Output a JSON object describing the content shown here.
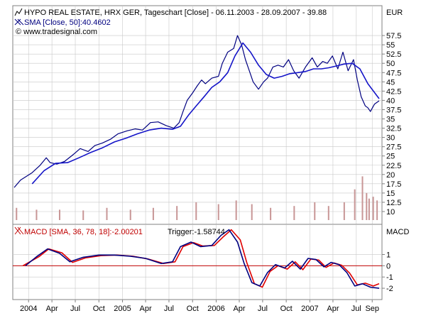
{
  "colors": {
    "background": "#ffffff",
    "grid": "#c8c8c8",
    "price_line": "#000080",
    "sma_line": "#1414c8",
    "volume_bars": "#c89696",
    "macd_line": "#000080",
    "trigger_line": "#e00000",
    "zero_line": "#c00000",
    "title_text": "#000000",
    "sma_text": "#000080",
    "macd_text": "#c00000"
  },
  "header": {
    "title": "HYPO REAL ESTATE, HRX GER, Tageschart [Close] - 06.11.2003 - 28.09.2007 - 39.88",
    "sma_legend": "SMA [Close, 50]:40.4602",
    "copyright": "© www.tradesignal.com",
    "currency": "EUR"
  },
  "macd_header": {
    "label": "MACD [SMA, 36, 78, 18]:-2.00201",
    "trigger": "Trigger:-1.58744",
    "axis_title": "MACD"
  },
  "chart_data": [
    {
      "type": "line",
      "title": "HYPO REAL ESTATE, HRX GER, Tageschart [Close] - 06.11.2003 - 28.09.2007 - 39.88",
      "ylabel": "EUR",
      "ylim": [
        10,
        60
      ],
      "yticks": [
        10,
        12.5,
        15,
        17.5,
        20,
        22.5,
        25,
        27.5,
        30,
        32.5,
        35,
        37.5,
        40,
        42.5,
        45,
        47.5,
        50,
        52.5,
        55,
        57.5
      ],
      "ytick_labels": [
        "10",
        "12.5",
        "15",
        "17.5",
        "20",
        "22.5",
        "25",
        "27.5",
        "30",
        "32.5",
        "35",
        "37.5",
        "40",
        "42.5",
        "45",
        "47.5",
        "50",
        "52.5",
        "55",
        "57.5"
      ],
      "x_range": [
        "2003-11-06",
        "2007-09-28"
      ],
      "xtick_dates": [
        "2004-01-01",
        "2004-04-01",
        "2004-07-01",
        "2004-10-01",
        "2005-01-01",
        "2005-04-01",
        "2005-07-01",
        "2005-10-01",
        "2006-01-01",
        "2006-04-01",
        "2006-07-01",
        "2006-10-01",
        "2007-01-01",
        "2007-04-01",
        "2007-07-01",
        "2007-09-01"
      ],
      "xtick_labels": [
        "2004",
        "Apr",
        "Jul",
        "Oct",
        "2005",
        "Apr",
        "Jul",
        "Oct",
        "2006",
        "Apr",
        "Jul",
        "Oct",
        "2007",
        "Apr",
        "Jul",
        "Sep"
      ],
      "grid": true,
      "series": [
        {
          "name": "HYPO REAL ESTATE",
          "x": [
            "2003-11-06",
            "2003-12-01",
            "2004-01-15",
            "2004-02-15",
            "2004-03-10",
            "2004-03-25",
            "2004-04-20",
            "2004-05-20",
            "2004-06-25",
            "2004-07-20",
            "2004-08-20",
            "2004-09-15",
            "2004-10-15",
            "2004-11-15",
            "2004-12-15",
            "2005-01-20",
            "2005-02-20",
            "2005-03-20",
            "2005-04-20",
            "2005-05-20",
            "2005-06-20",
            "2005-07-20",
            "2005-08-10",
            "2005-08-25",
            "2005-09-10",
            "2005-10-01",
            "2005-10-20",
            "2005-11-05",
            "2005-11-20",
            "2005-12-15",
            "2006-01-10",
            "2006-01-25",
            "2006-02-15",
            "2006-03-10",
            "2006-03-25",
            "2006-04-10",
            "2006-04-25",
            "2006-05-10",
            "2006-05-25",
            "2006-06-15",
            "2006-07-05",
            "2006-07-20",
            "2006-08-10",
            "2006-08-30",
            "2006-09-20",
            "2006-10-10",
            "2006-10-30",
            "2006-11-20",
            "2006-12-15",
            "2007-01-10",
            "2007-01-30",
            "2007-02-20",
            "2007-03-10",
            "2007-03-30",
            "2007-04-20",
            "2007-05-10",
            "2007-05-30",
            "2007-06-20",
            "2007-07-05",
            "2007-07-20",
            "2007-08-05",
            "2007-08-15",
            "2007-08-25",
            "2007-09-10",
            "2007-09-28"
          ],
          "values": [
            16.5,
            18.5,
            20.5,
            22.5,
            24.5,
            23.2,
            22.8,
            23.5,
            25.5,
            27,
            26.2,
            27.8,
            28.5,
            29.5,
            31,
            31.8,
            32.3,
            32,
            34,
            34.2,
            33.2,
            32.5,
            34,
            37,
            40,
            42,
            44,
            45.5,
            44.5,
            46,
            46.5,
            50,
            53,
            54,
            57.5,
            55,
            51,
            48,
            45,
            43,
            45,
            46,
            49,
            49.5,
            49,
            51,
            48,
            46,
            49,
            51.5,
            49,
            50.5,
            50,
            52,
            48.5,
            53,
            48,
            51,
            45.5,
            41,
            38.5,
            38,
            37,
            39,
            39.88
          ]
        },
        {
          "name": "SMA [Close, 50]",
          "x": [
            "2004-01-15",
            "2004-03-01",
            "2004-04-15",
            "2004-06-01",
            "2004-07-15",
            "2004-09-01",
            "2004-10-15",
            "2004-12-01",
            "2005-01-15",
            "2005-03-01",
            "2005-04-15",
            "2005-06-01",
            "2005-07-15",
            "2005-08-15",
            "2005-09-15",
            "2005-10-15",
            "2005-11-15",
            "2005-12-15",
            "2006-01-15",
            "2006-02-15",
            "2006-03-15",
            "2006-04-15",
            "2006-05-15",
            "2006-06-15",
            "2006-07-15",
            "2006-08-15",
            "2006-09-15",
            "2006-10-15",
            "2006-11-15",
            "2006-12-15",
            "2007-01-15",
            "2007-02-15",
            "2007-03-15",
            "2007-04-15",
            "2007-05-15",
            "2007-06-15",
            "2007-07-15",
            "2007-08-15",
            "2007-09-28"
          ],
          "values": [
            17.5,
            21,
            23,
            23.2,
            24.5,
            26,
            27.2,
            28.8,
            29.8,
            31,
            32,
            32.5,
            32.2,
            33,
            36,
            38.5,
            41,
            43.5,
            45,
            47.5,
            52,
            55.5,
            53,
            49.5,
            47,
            46,
            46.5,
            47.2,
            47.5,
            47.8,
            48.5,
            48.5,
            48.8,
            49.3,
            49.8,
            50,
            48.5,
            44.5,
            40.46
          ]
        }
      ]
    },
    {
      "type": "bar",
      "title": "",
      "ylabel": "",
      "x_range": [
        "2003-11-06",
        "2007-09-28"
      ],
      "notes": "",
      "series": [
        {
          "name": "",
          "x": [
            "2003-11-15",
            "2004-02-01",
            "2004-05-01",
            "2004-08-01",
            "2004-11-01",
            "2005-02-01",
            "2005-05-01",
            "2005-08-01",
            "2005-10-15",
            "2006-01-10",
            "2006-03-20",
            "2006-05-20",
            "2006-08-01",
            "2006-11-01",
            "2007-01-20",
            "2007-03-15",
            "2007-05-15",
            "2007-06-25",
            "2007-07-25",
            "2007-08-10",
            "2007-08-20",
            "2007-09-05",
            "2007-09-20"
          ],
          "values": [
            11,
            10.5,
            10.5,
            10.3,
            11,
            10.5,
            11,
            11.5,
            12.5,
            12,
            13,
            12,
            11,
            11.5,
            12.5,
            11.5,
            12.5,
            16,
            19.5,
            15,
            13.5,
            14,
            13
          ]
        }
      ]
    },
    {
      "type": "line",
      "title": "MACD [SMA, 36, 78, 18]:-2.00201",
      "ylabel": "MACD",
      "ylim": [
        -2.5,
        3.3
      ],
      "yticks": [
        -2,
        -1,
        0,
        1
      ],
      "ytick_labels": [
        "-2",
        "-1",
        "0",
        "1"
      ],
      "x_range": [
        "2003-11-06",
        "2007-09-28"
      ],
      "grid": true,
      "series": [
        {
          "name": "MACD",
          "x": [
            "2003-12-20",
            "2004-02-01",
            "2004-03-15",
            "2004-05-01",
            "2004-06-10",
            "2004-08-01",
            "2004-10-01",
            "2004-12-01",
            "2005-02-01",
            "2005-04-01",
            "2005-06-01",
            "2005-07-15",
            "2005-08-15",
            "2005-09-25",
            "2005-11-01",
            "2005-12-15",
            "2006-01-20",
            "2006-02-20",
            "2006-03-25",
            "2006-04-20",
            "2006-05-20",
            "2006-06-20",
            "2006-07-20",
            "2006-08-20",
            "2006-09-25",
            "2006-10-25",
            "2006-11-25",
            "2006-12-25",
            "2007-01-25",
            "2007-02-25",
            "2007-03-25",
            "2007-04-25",
            "2007-05-25",
            "2007-06-25",
            "2007-07-25",
            "2007-08-25",
            "2007-09-28"
          ],
          "values": [
            0,
            0.8,
            1.5,
            1.1,
            0.35,
            0.75,
            0.95,
            0.95,
            0.85,
            0.65,
            0.2,
            0.35,
            1.7,
            2.1,
            1.7,
            1.8,
            2.7,
            3.2,
            2.1,
            0.2,
            -1.5,
            -1.8,
            -0.6,
            0.1,
            -0.2,
            0.4,
            -0.3,
            0.65,
            0.55,
            -0.1,
            0.3,
            0.1,
            -0.6,
            -1.8,
            -1.6,
            -1.9,
            -2.0
          ]
        },
        {
          "name": "Trigger",
          "x": [
            "2003-12-10",
            "2004-02-10",
            "2004-03-20",
            "2004-05-10",
            "2004-06-20",
            "2004-08-10",
            "2004-10-10",
            "2004-12-10",
            "2005-02-10",
            "2005-04-10",
            "2005-06-10",
            "2005-07-25",
            "2005-08-25",
            "2005-10-05",
            "2005-11-10",
            "2005-12-25",
            "2006-01-30",
            "2006-03-01",
            "2006-04-05",
            "2006-04-30",
            "2006-05-30",
            "2006-06-30",
            "2006-07-30",
            "2006-08-30",
            "2006-10-05",
            "2006-11-05",
            "2006-12-05",
            "2007-01-05",
            "2007-02-05",
            "2007-03-05",
            "2007-04-05",
            "2007-05-05",
            "2007-06-05",
            "2007-07-05",
            "2007-08-05",
            "2007-09-05",
            "2007-09-28"
          ],
          "values": [
            0,
            0.8,
            1.5,
            1.15,
            0.3,
            0.7,
            0.9,
            0.95,
            0.85,
            0.6,
            0.2,
            0.35,
            1.7,
            2.05,
            1.75,
            1.8,
            2.6,
            3.2,
            2.3,
            0.3,
            -1.6,
            -1.9,
            -0.5,
            0.0,
            -0.3,
            0.35,
            -0.35,
            0.6,
            0.5,
            -0.15,
            0.25,
            0.05,
            -0.65,
            -1.7,
            -1.55,
            -1.8,
            -1.59
          ]
        }
      ]
    }
  ]
}
